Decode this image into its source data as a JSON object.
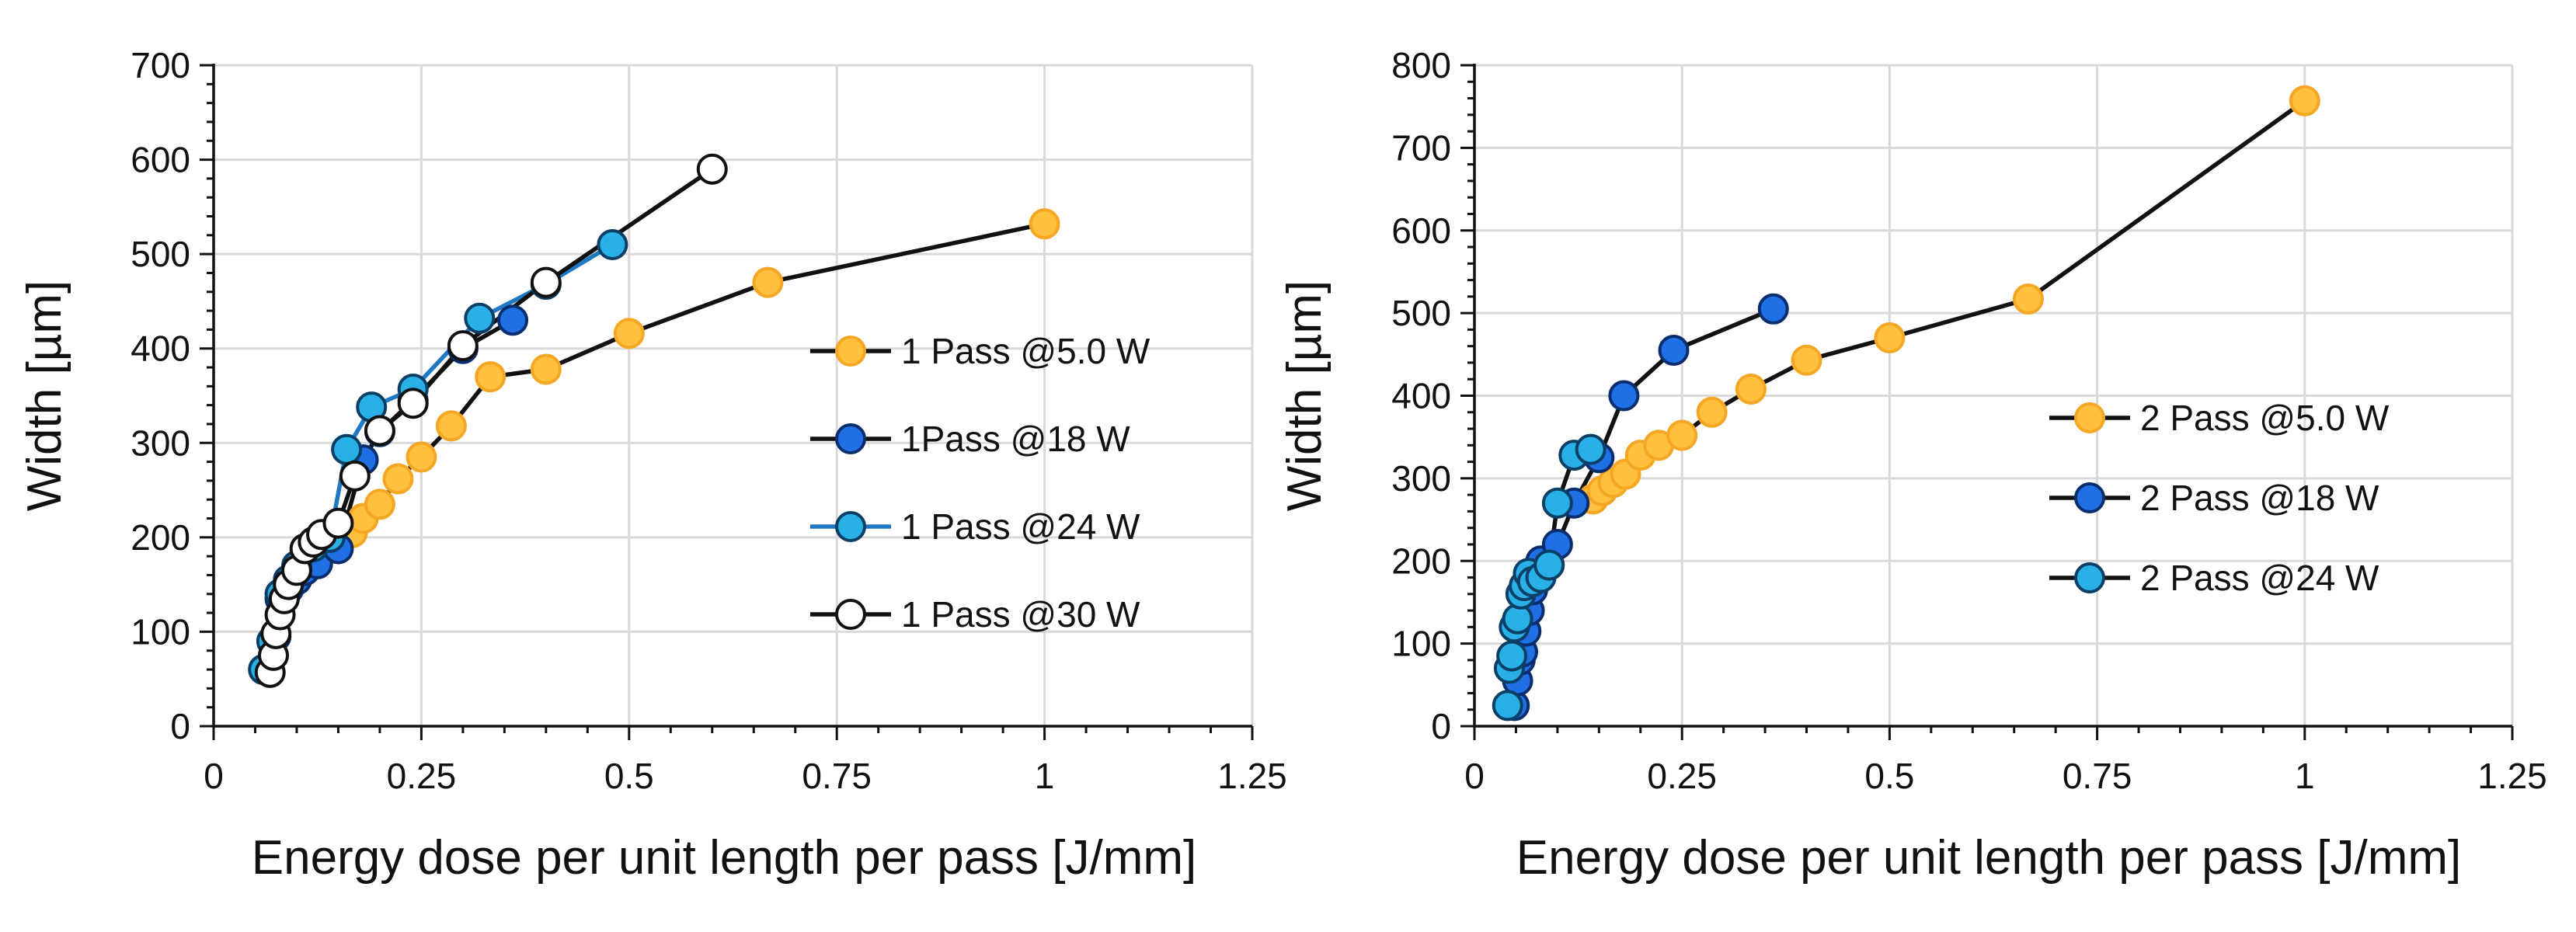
{
  "chart_data": [
    {
      "type": "line",
      "title": "",
      "xlabel": "Energy dose per unit length per pass [J/mm]",
      "ylabel": "Width [µm]",
      "xlim": [
        0,
        1.25
      ],
      "ylim": [
        0,
        700
      ],
      "xticks": [
        0,
        0.25,
        0.5,
        0.75,
        1,
        1.25
      ],
      "xtick_labels": [
        "0",
        "0.25",
        "0.5",
        "0.75",
        "1",
        "1.25"
      ],
      "yticks": [
        0,
        100,
        200,
        300,
        400,
        500,
        600,
        700
      ],
      "ytick_labels": [
        "0",
        "100",
        "200",
        "300",
        "400",
        "500",
        "600",
        "700"
      ],
      "grid": true,
      "legend_position": "right",
      "series": [
        {
          "name": "1 Pass @5.0 W",
          "fill": "#ffc13d",
          "stroke": "#f5a623",
          "line": "#111111",
          "x": [
            0.167,
            0.18,
            0.2,
            0.222,
            0.25,
            0.286,
            0.333,
            0.4,
            0.5,
            0.667,
            1.0
          ],
          "y": [
            205,
            220,
            235,
            262,
            285,
            318,
            370,
            378,
            416,
            470,
            532
          ]
        },
        {
          "name": "1Pass @18 W",
          "fill": "#1f6fe5",
          "stroke": "#0a2d6e",
          "line": "#111111",
          "x": [
            0.065,
            0.075,
            0.08,
            0.09,
            0.1,
            0.11,
            0.125,
            0.15,
            0.18,
            0.2,
            0.24,
            0.3,
            0.36
          ],
          "y": [
            60,
            95,
            135,
            145,
            155,
            165,
            172,
            188,
            282,
            312,
            345,
            400,
            430
          ]
        },
        {
          "name": "1 Pass @24 W",
          "fill": "#29b0e6",
          "stroke": "#0b3f66",
          "line": "#1f78c1",
          "x": [
            0.06,
            0.07,
            0.08,
            0.09,
            0.1,
            0.12,
            0.14,
            0.16,
            0.19,
            0.24,
            0.32,
            0.4,
            0.48
          ],
          "y": [
            60,
            90,
            140,
            155,
            170,
            190,
            200,
            293,
            338,
            357,
            432,
            468,
            510
          ]
        },
        {
          "name": "1 Pass @30 W",
          "fill": "#ffffff",
          "stroke": "#111111",
          "line": "#111111",
          "x": [
            0.068,
            0.072,
            0.075,
            0.08,
            0.085,
            0.09,
            0.1,
            0.11,
            0.12,
            0.13,
            0.15,
            0.17,
            0.2,
            0.24,
            0.3,
            0.4,
            0.6
          ],
          "y": [
            57,
            75,
            98,
            118,
            135,
            150,
            165,
            188,
            195,
            203,
            215,
            265,
            313,
            342,
            403,
            470,
            590
          ]
        }
      ]
    },
    {
      "type": "line",
      "title": "",
      "xlabel": "Energy dose per unit length per pass [J/mm]",
      "ylabel": "Width [µm]",
      "xlim": [
        0,
        1.25
      ],
      "ylim": [
        0,
        800
      ],
      "xticks": [
        0,
        0.25,
        0.5,
        0.75,
        1,
        1.25
      ],
      "xtick_labels": [
        "0",
        "0.25",
        "0.5",
        "0.75",
        "1",
        "1.25"
      ],
      "yticks": [
        0,
        100,
        200,
        300,
        400,
        500,
        600,
        700,
        800
      ],
      "ytick_labels": [
        "0",
        "100",
        "200",
        "300",
        "400",
        "500",
        "600",
        "700",
        "800"
      ],
      "grid": true,
      "legend_position": "right",
      "series": [
        {
          "name": "2 Pass @5.0 W",
          "fill": "#ffc13d",
          "stroke": "#f5a623",
          "line": "#111111",
          "x": [
            0.143,
            0.154,
            0.167,
            0.182,
            0.2,
            0.222,
            0.25,
            0.286,
            0.333,
            0.4,
            0.5,
            0.667,
            1.0
          ],
          "y": [
            275,
            285,
            295,
            305,
            328,
            340,
            352,
            380,
            408,
            443,
            470,
            517,
            757
          ]
        },
        {
          "name": "2 Pass @18 W",
          "fill": "#1f6fe5",
          "stroke": "#0a2d6e",
          "line": "#111111",
          "x": [
            0.048,
            0.052,
            0.055,
            0.058,
            0.062,
            0.066,
            0.07,
            0.075,
            0.08,
            0.09,
            0.1,
            0.12,
            0.15,
            0.18,
            0.24,
            0.36
          ],
          "y": [
            25,
            55,
            80,
            90,
            115,
            140,
            165,
            185,
            200,
            195,
            220,
            270,
            325,
            400,
            455,
            505
          ]
        },
        {
          "name": "2 Pass @24 W",
          "fill": "#29b0e6",
          "stroke": "#0b3f66",
          "line": "#111111",
          "x": [
            0.04,
            0.042,
            0.045,
            0.048,
            0.052,
            0.056,
            0.06,
            0.065,
            0.07,
            0.08,
            0.09,
            0.1,
            0.12,
            0.14
          ],
          "y": [
            25,
            70,
            85,
            120,
            130,
            160,
            170,
            185,
            175,
            180,
            195,
            270,
            328,
            335
          ]
        }
      ]
    }
  ]
}
